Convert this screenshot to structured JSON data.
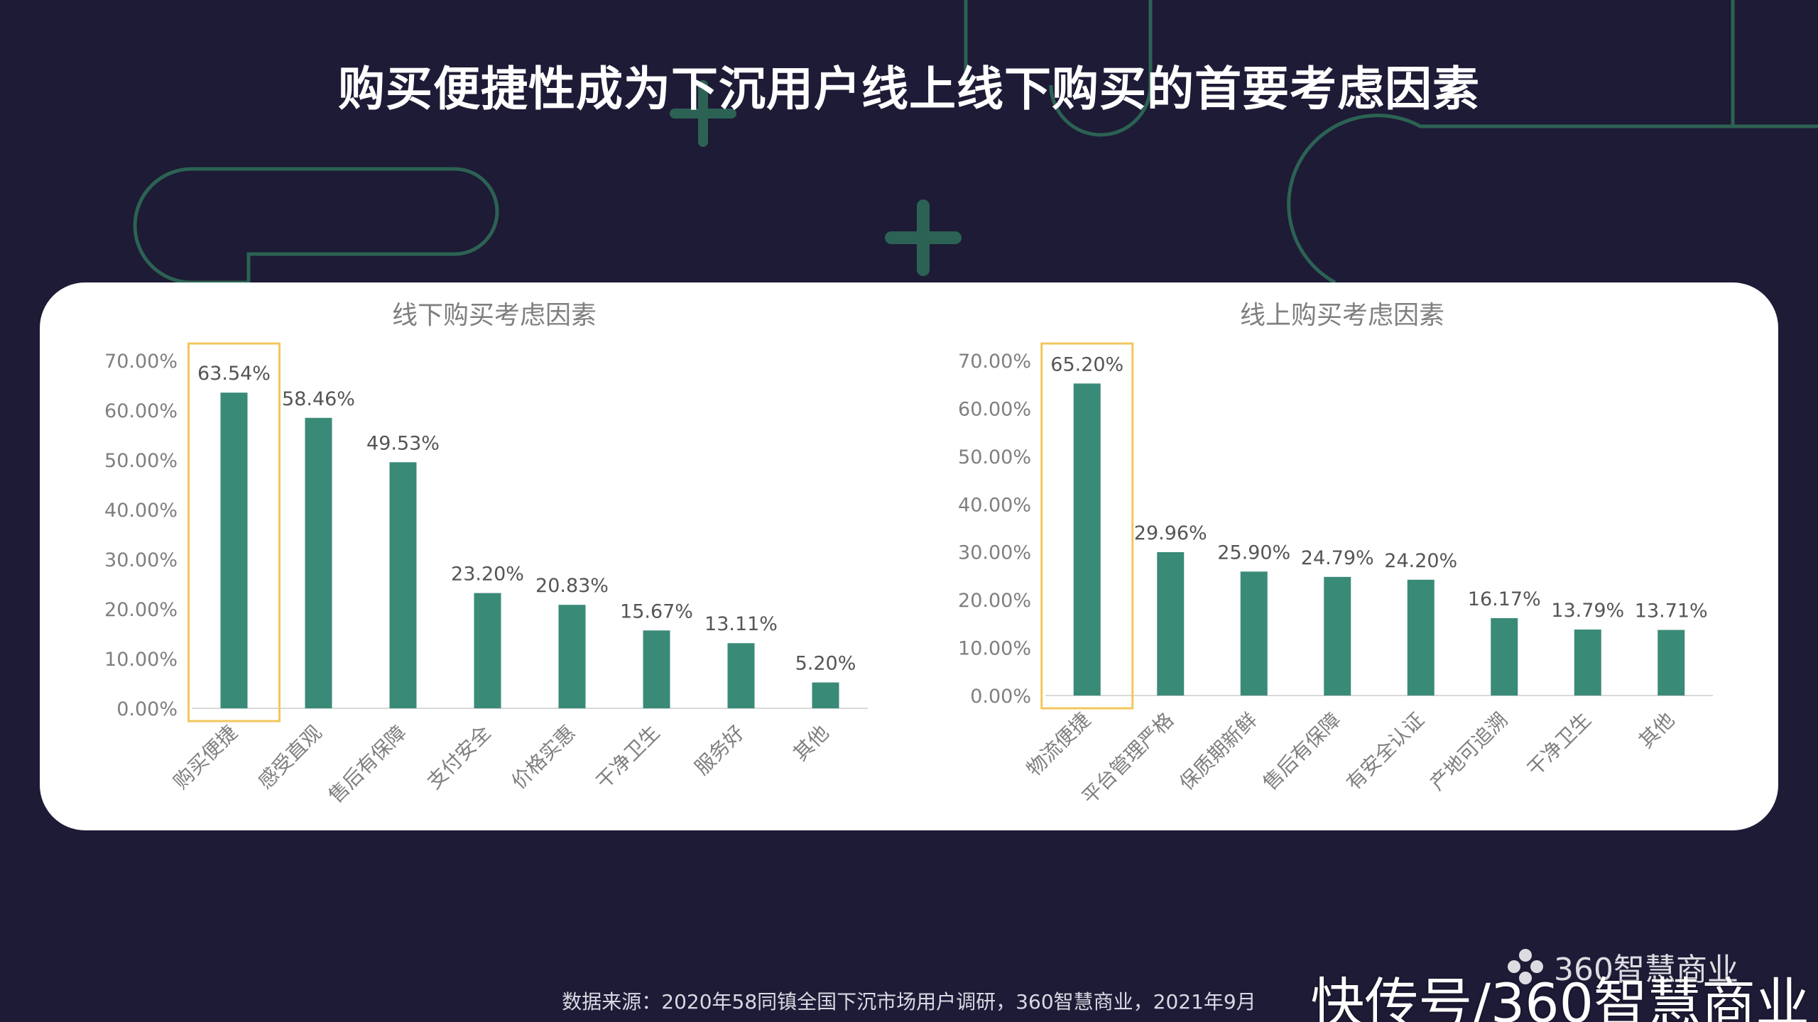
{
  "title": "购买便捷性成为下沉用户线上线下购买的首要考虑因素",
  "source": "数据来源：2020年58同镇全国下沉市场用户调研，360智慧商业，2021年9月",
  "brand": "360智慧商业",
  "watermark": "快传号/360智慧商业",
  "colors": {
    "background": "#1d1b36",
    "deco_stroke": "#2f6a56",
    "bar": "#3a8a78",
    "highlight_box": "#f2c75c",
    "axis_text": "#7f7f7f",
    "title_text": "#7f7f7f"
  },
  "chart_data": [
    {
      "type": "bar",
      "title": "线下购买考虑因素",
      "categories": [
        "购买便捷",
        "感受直观",
        "售后有保障",
        "支付安全",
        "价格实惠",
        "干净卫生",
        "服务好",
        "其他"
      ],
      "values": [
        63.54,
        58.46,
        49.53,
        23.2,
        20.83,
        15.67,
        13.11,
        5.2
      ],
      "value_labels": [
        "63.54%",
        "58.46%",
        "49.53%",
        "23.20%",
        "20.83%",
        "15.67%",
        "13.11%",
        "5.20%"
      ],
      "yticks": [
        "0.00%",
        "10.00%",
        "20.00%",
        "30.00%",
        "40.00%",
        "50.00%",
        "60.00%",
        "70.00%"
      ],
      "ylim": [
        0,
        70
      ],
      "highlight_index": 0,
      "xlabel": "",
      "ylabel": ""
    },
    {
      "type": "bar",
      "title": "线上购买考虑因素",
      "categories": [
        "物流便捷",
        "平台管理严格",
        "保质期新鲜",
        "售后有保障",
        "有安全认证",
        "产地可追溯",
        "干净卫生",
        "其他"
      ],
      "values": [
        65.2,
        29.96,
        25.9,
        24.79,
        24.2,
        16.17,
        13.79,
        13.71
      ],
      "value_labels": [
        "65.20%",
        "29.96%",
        "25.90%",
        "24.79%",
        "24.20%",
        "16.17%",
        "13.79%",
        "13.71%"
      ],
      "yticks": [
        "0.00%",
        "10.00%",
        "20.00%",
        "30.00%",
        "40.00%",
        "50.00%",
        "60.00%",
        "70.00%"
      ],
      "ylim": [
        0,
        70
      ],
      "highlight_index": 0,
      "xlabel": "",
      "ylabel": ""
    }
  ]
}
